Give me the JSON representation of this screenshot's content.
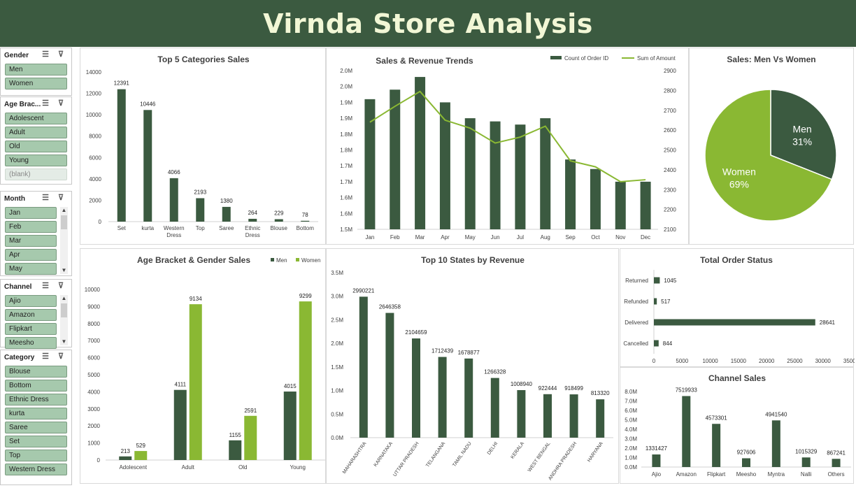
{
  "title": "Virnda Store Analysis",
  "colors": {
    "dark": "#3b5a40",
    "light": "#8ab833",
    "banner": "#3b5a40",
    "slicer_item": "#a6c9ad"
  },
  "slicers": [
    {
      "name": "Gender",
      "items": [
        "Men",
        "Women"
      ],
      "icons": [
        "multi-select-icon",
        "clear-filter-icon"
      ]
    },
    {
      "name": "Age Brac...",
      "items": [
        "Adolescent",
        "Adult",
        "Old",
        "Young",
        "(blank)"
      ]
    },
    {
      "name": "Month",
      "items": [
        "Jan",
        "Feb",
        "Mar",
        "Apr",
        "May"
      ]
    },
    {
      "name": "Channel",
      "items": [
        "Ajio",
        "Amazon",
        "Flipkart",
        "Meesho"
      ]
    },
    {
      "name": "Category",
      "items": [
        "Blouse",
        "Bottom",
        "Ethnic Dress",
        "kurta",
        "Saree",
        "Set",
        "Top",
        "Western Dress"
      ]
    }
  ],
  "chart_data": [
    {
      "id": "top5",
      "type": "bar",
      "title": "Top 5 Categories Sales",
      "categories": [
        "Set",
        "kurta",
        "Western Dress",
        "Top",
        "Saree",
        "Ethnic Dress",
        "Blouse",
        "Bottom"
      ],
      "values": [
        12391,
        10446,
        4066,
        2193,
        1380,
        264,
        229,
        78
      ],
      "ylim": [
        0,
        14000
      ],
      "yticks": [
        "0",
        "2000",
        "4000",
        "6000",
        "8000",
        "10000",
        "12000",
        "14000"
      ]
    },
    {
      "id": "trends",
      "type": "bar",
      "title": "Sales & Revenue Trends",
      "legend": [
        "Count of Order ID",
        "Sum of Amount"
      ],
      "categories": [
        "Jan",
        "Feb",
        "Mar",
        "Apr",
        "May",
        "Jun",
        "Jul",
        "Aug",
        "Sep",
        "Oct",
        "Nov",
        "Dec"
      ],
      "bar_values": [
        1.91,
        1.94,
        1.98,
        1.9,
        1.85,
        1.84,
        1.83,
        1.85,
        1.72,
        1.69,
        1.65,
        1.65
      ],
      "line_values": [
        2640,
        2720,
        2795,
        2650,
        2610,
        2535,
        2565,
        2620,
        2445,
        2415,
        2340,
        2350
      ],
      "ylim_left": [
        1.5,
        2.0
      ],
      "ylim_right": [
        2100,
        2900
      ],
      "yticks_left": [
        "1.5M",
        "1.6M",
        "1.6M",
        "1.7M",
        "1.7M",
        "1.8M",
        "1.8M",
        "1.9M",
        "1.9M",
        "2.0M",
        "2.0M"
      ],
      "yticks_right": [
        "2100",
        "2200",
        "2300",
        "2400",
        "2500",
        "2600",
        "2700",
        "2800",
        "2900"
      ]
    },
    {
      "id": "pie",
      "type": "pie",
      "title": "Sales: Men Vs Women",
      "slices": [
        {
          "label": "Men",
          "value": 31,
          "pct": "31%"
        },
        {
          "label": "Women",
          "value": 69,
          "pct": "69%"
        }
      ]
    },
    {
      "id": "agegender",
      "type": "bar",
      "title": "Age Bracket & Gender Sales",
      "legend": [
        "Men",
        "Women"
      ],
      "categories": [
        "Adolescent",
        "Adult",
        "Old",
        "Young"
      ],
      "series": [
        {
          "name": "Men",
          "values": [
            213,
            4111,
            1155,
            4015
          ]
        },
        {
          "name": "Women",
          "values": [
            529,
            9134,
            2591,
            9299
          ]
        }
      ],
      "ylim": [
        0,
        10000
      ],
      "yticks": [
        "0",
        "1000",
        "2000",
        "3000",
        "4000",
        "5000",
        "6000",
        "7000",
        "8000",
        "9000",
        "10000"
      ]
    },
    {
      "id": "states",
      "type": "bar",
      "title": "Top 10 States by Revenue",
      "categories": [
        "MAHARASHTRA",
        "KARNATAKA",
        "UTTAR PRADESH",
        "TELANGANA",
        "TAMIL NADU",
        "DELHI",
        "KERALA",
        "WEST BENGAL",
        "ANDHRA PRADESH",
        "HARYANA"
      ],
      "values": [
        2990221,
        2646358,
        2104659,
        1712439,
        1678877,
        1266328,
        1008940,
        922444,
        918499,
        813320
      ],
      "ylim": [
        0,
        3500000
      ],
      "yticks": [
        "0.0M",
        "0.5M",
        "1.0M",
        "1.5M",
        "2.0M",
        "2.5M",
        "3.0M",
        "3.5M"
      ]
    },
    {
      "id": "status",
      "type": "bar",
      "title": "Total Order Status",
      "categories": [
        "Returned",
        "Refunded",
        "Delivered",
        "Cancelled"
      ],
      "values": [
        1045,
        517,
        28641,
        844
      ],
      "xlim": [
        0,
        35000
      ],
      "xticks": [
        "0",
        "5000",
        "10000",
        "15000",
        "20000",
        "25000",
        "30000",
        "35000"
      ]
    },
    {
      "id": "channel",
      "type": "bar",
      "title": "Channel Sales",
      "categories": [
        "Ajio",
        "Amazon",
        "Flipkart",
        "Meesho",
        "Myntra",
        "Nalli",
        "Others"
      ],
      "values": [
        1331427,
        7519933,
        4573301,
        927606,
        4941540,
        1015329,
        867241
      ],
      "ylim": [
        0,
        8000000
      ],
      "yticks": [
        "0.0M",
        "1.0M",
        "2.0M",
        "3.0M",
        "4.0M",
        "5.0M",
        "6.0M",
        "7.0M",
        "8.0M"
      ]
    }
  ]
}
